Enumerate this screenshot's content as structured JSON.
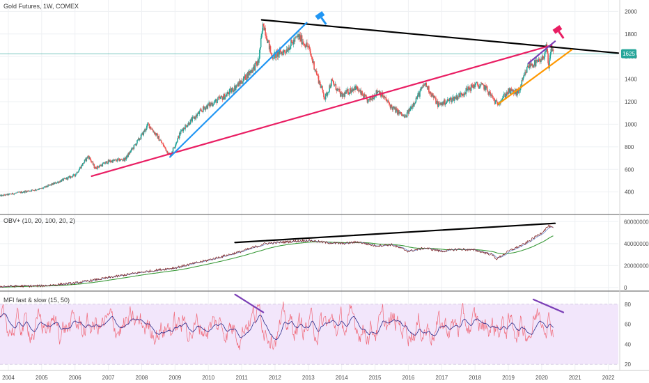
{
  "header": {
    "main_title": "Gold Futures, 1W, COMEX",
    "obv_title": "OBV+ (10, 20, 100, 20, 2)",
    "mfi_title": "MFI fast & slow (15, 50)"
  },
  "price_badge": {
    "value": "1625",
    "color": "#26a69a"
  },
  "colors": {
    "up": "#26a69a",
    "down": "#ef5350",
    "black_line": "#000000",
    "pink_line": "#e91e63",
    "blue_line": "#2196f3",
    "purple_line": "#7b3fb6",
    "orange_line": "#ff9800",
    "obv_line": "#7b1c1c",
    "obv_fast": "#6f8fd0",
    "obv_slow": "#3a9a3a",
    "mfi_fast": "#f06a7a",
    "mfi_slow": "#2a2a8a",
    "mfi_band": "#f2e6fb"
  },
  "chart_data": [
    {
      "type": "candlestick",
      "title": "Gold Futures, 1W, COMEX",
      "x_ticks": [
        "2004",
        "2005",
        "2006",
        "2007",
        "2008",
        "2009",
        "2010",
        "2011",
        "2012",
        "2013",
        "2014",
        "2015",
        "2016",
        "2017",
        "2018",
        "2019",
        "2020",
        "2021",
        "2022"
      ],
      "y_ticks": [
        400,
        600,
        800,
        1000,
        1200,
        1400,
        1600,
        1800,
        2000
      ],
      "ylim": [
        250,
        2070
      ],
      "xlim": [
        2003.75,
        2022.3
      ],
      "last_price": 1625,
      "price_anchors": [
        [
          2003.75,
          365
        ],
        [
          2005.0,
          430
        ],
        [
          2006.0,
          550
        ],
        [
          2006.4,
          720
        ],
        [
          2006.6,
          610
        ],
        [
          2007.0,
          670
        ],
        [
          2007.5,
          690
        ],
        [
          2008.0,
          900
        ],
        [
          2008.2,
          1000
        ],
        [
          2008.5,
          880
        ],
        [
          2008.85,
          720
        ],
        [
          2009.2,
          950
        ],
        [
          2009.9,
          1150
        ],
        [
          2010.5,
          1250
        ],
        [
          2011.0,
          1380
        ],
        [
          2011.5,
          1550
        ],
        [
          2011.65,
          1900
        ],
        [
          2011.9,
          1600
        ],
        [
          2012.3,
          1650
        ],
        [
          2012.7,
          1780
        ],
        [
          2013.0,
          1680
        ],
        [
          2013.3,
          1400
        ],
        [
          2013.5,
          1230
        ],
        [
          2013.7,
          1380
        ],
        [
          2014.0,
          1250
        ],
        [
          2014.4,
          1330
        ],
        [
          2014.8,
          1200
        ],
        [
          2015.1,
          1300
        ],
        [
          2015.5,
          1150
        ],
        [
          2015.9,
          1060
        ],
        [
          2016.5,
          1360
        ],
        [
          2016.9,
          1170
        ],
        [
          2017.5,
          1250
        ],
        [
          2018.0,
          1350
        ],
        [
          2018.3,
          1330
        ],
        [
          2018.65,
          1180
        ],
        [
          2019.0,
          1290
        ],
        [
          2019.3,
          1280
        ],
        [
          2019.6,
          1520
        ],
        [
          2020.0,
          1560
        ],
        [
          2020.15,
          1690
        ],
        [
          2020.2,
          1480
        ],
        [
          2020.3,
          1690
        ],
        [
          2020.35,
          1625
        ]
      ],
      "annotations": [
        {
          "name": "black-resistance-line",
          "color": "#000000",
          "points": [
            [
              2011.6,
              1925
            ],
            [
              2022.3,
              1630
            ]
          ]
        },
        {
          "name": "pink-support-line",
          "color": "#e91e63",
          "points": [
            [
              2006.5,
              540
            ],
            [
              2020.3,
              1700
            ]
          ]
        },
        {
          "name": "blue-trend-line",
          "color": "#2196f3",
          "points": [
            [
              2008.85,
              710
            ],
            [
              2012.95,
              1900
            ]
          ]
        },
        {
          "name": "purple-line",
          "color": "#7b3fb6",
          "points": [
            [
              2019.6,
              1540
            ],
            [
              2020.4,
              1735
            ]
          ]
        },
        {
          "name": "orange-trend-line",
          "color": "#ff9800",
          "points": [
            [
              2018.7,
              1180
            ],
            [
              2020.9,
              1660
            ]
          ]
        }
      ]
    },
    {
      "type": "line",
      "title": "OBV+ (10, 20, 100, 20, 2)",
      "y_ticks": [
        0,
        20000000,
        40000000,
        60000000
      ],
      "y_tick_labels": [
        "0",
        "20000000",
        "40000000",
        "60000000"
      ],
      "ylim": [
        -2000000,
        64000000
      ],
      "anchors": [
        [
          2003.75,
          1000000
        ],
        [
          2005.0,
          1500000
        ],
        [
          2006.0,
          4000000
        ],
        [
          2007.0,
          9000000
        ],
        [
          2008.0,
          14000000
        ],
        [
          2009.0,
          18000000
        ],
        [
          2010.0,
          25000000
        ],
        [
          2011.0,
          33000000
        ],
        [
          2011.7,
          40000000
        ],
        [
          2012.5,
          42000000
        ],
        [
          2013.0,
          43000000
        ],
        [
          2013.5,
          41000000
        ],
        [
          2014.0,
          40000000
        ],
        [
          2014.5,
          41500000
        ],
        [
          2015.0,
          38000000
        ],
        [
          2015.5,
          39000000
        ],
        [
          2016.0,
          33000000
        ],
        [
          2016.5,
          36000000
        ],
        [
          2017.0,
          33000000
        ],
        [
          2017.5,
          35000000
        ],
        [
          2018.0,
          34000000
        ],
        [
          2018.5,
          30000000
        ],
        [
          2018.65,
          26000000
        ],
        [
          2019.0,
          33000000
        ],
        [
          2019.5,
          40000000
        ],
        [
          2020.0,
          50000000
        ],
        [
          2020.2,
          56000000
        ],
        [
          2020.35,
          54000000
        ]
      ],
      "series": [
        {
          "name": "",
          "color": "#7b1c1c"
        },
        {
          "name": "",
          "color": "#6f8fd0"
        },
        {
          "name": "",
          "color": "#3a9a3a"
        }
      ],
      "annotations": [
        {
          "name": "obv-black-line",
          "color": "#000000",
          "points": [
            [
              2010.8,
              41000000
            ],
            [
              2020.4,
              58500000
            ]
          ]
        }
      ]
    },
    {
      "type": "line",
      "title": "MFI fast & slow (15, 50)",
      "y_ticks": [
        20,
        40,
        60,
        80
      ],
      "ylim": [
        15,
        92
      ],
      "band": [
        20,
        80
      ],
      "series": [
        {
          "name": "",
          "color": "#f06a7a"
        },
        {
          "name": "",
          "color": "#2a2a8a"
        }
      ],
      "annotations": [
        {
          "name": "mfi-purple-line-left",
          "color": "#7b3fb6",
          "points": [
            [
              2010.8,
              90
            ],
            [
              2011.65,
              72
            ]
          ]
        },
        {
          "name": "mfi-purple-line-right",
          "color": "#7b3fb6",
          "points": [
            [
              2019.75,
              85
            ],
            [
              2020.65,
              72
            ]
          ]
        }
      ]
    }
  ]
}
